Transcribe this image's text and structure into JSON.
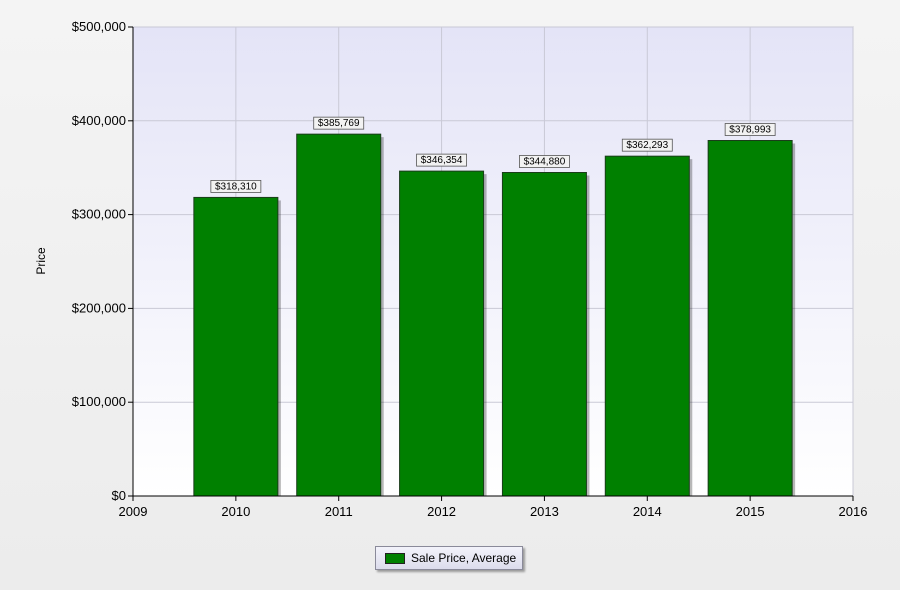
{
  "chart_data": {
    "type": "bar",
    "x": [
      2010,
      2011,
      2012,
      2013,
      2014,
      2015
    ],
    "values": [
      318310,
      385769,
      346354,
      344880,
      362293,
      378993
    ],
    "data_labels": [
      "$318,310",
      "$385,769",
      "$346,354",
      "$344,880",
      "$362,293",
      "$378,993"
    ],
    "series": [
      {
        "name": "Sale Price, Average",
        "values": [
          318310,
          385769,
          346354,
          344880,
          362293,
          378993
        ]
      }
    ],
    "xlim": [
      2009,
      2016
    ],
    "x_ticks": [
      "2009",
      "2010",
      "2011",
      "2012",
      "2013",
      "2014",
      "2015",
      "2016"
    ],
    "ylim": [
      0,
      500000
    ],
    "y_ticks": [
      "$0",
      "$100,000",
      "$200,000",
      "$300,000",
      "$400,000",
      "$500,000"
    ],
    "ylabel": "Price",
    "xlabel": "",
    "grid": true,
    "legend_position": "bottom-center",
    "bar_color": "#008000",
    "bar_edge_color": "#1a3d1a",
    "plot_background_top": "#e4e4f7",
    "plot_background_bottom": "#ffffff"
  },
  "legend": {
    "label": "Sale Price, Average",
    "color": "#008000"
  }
}
